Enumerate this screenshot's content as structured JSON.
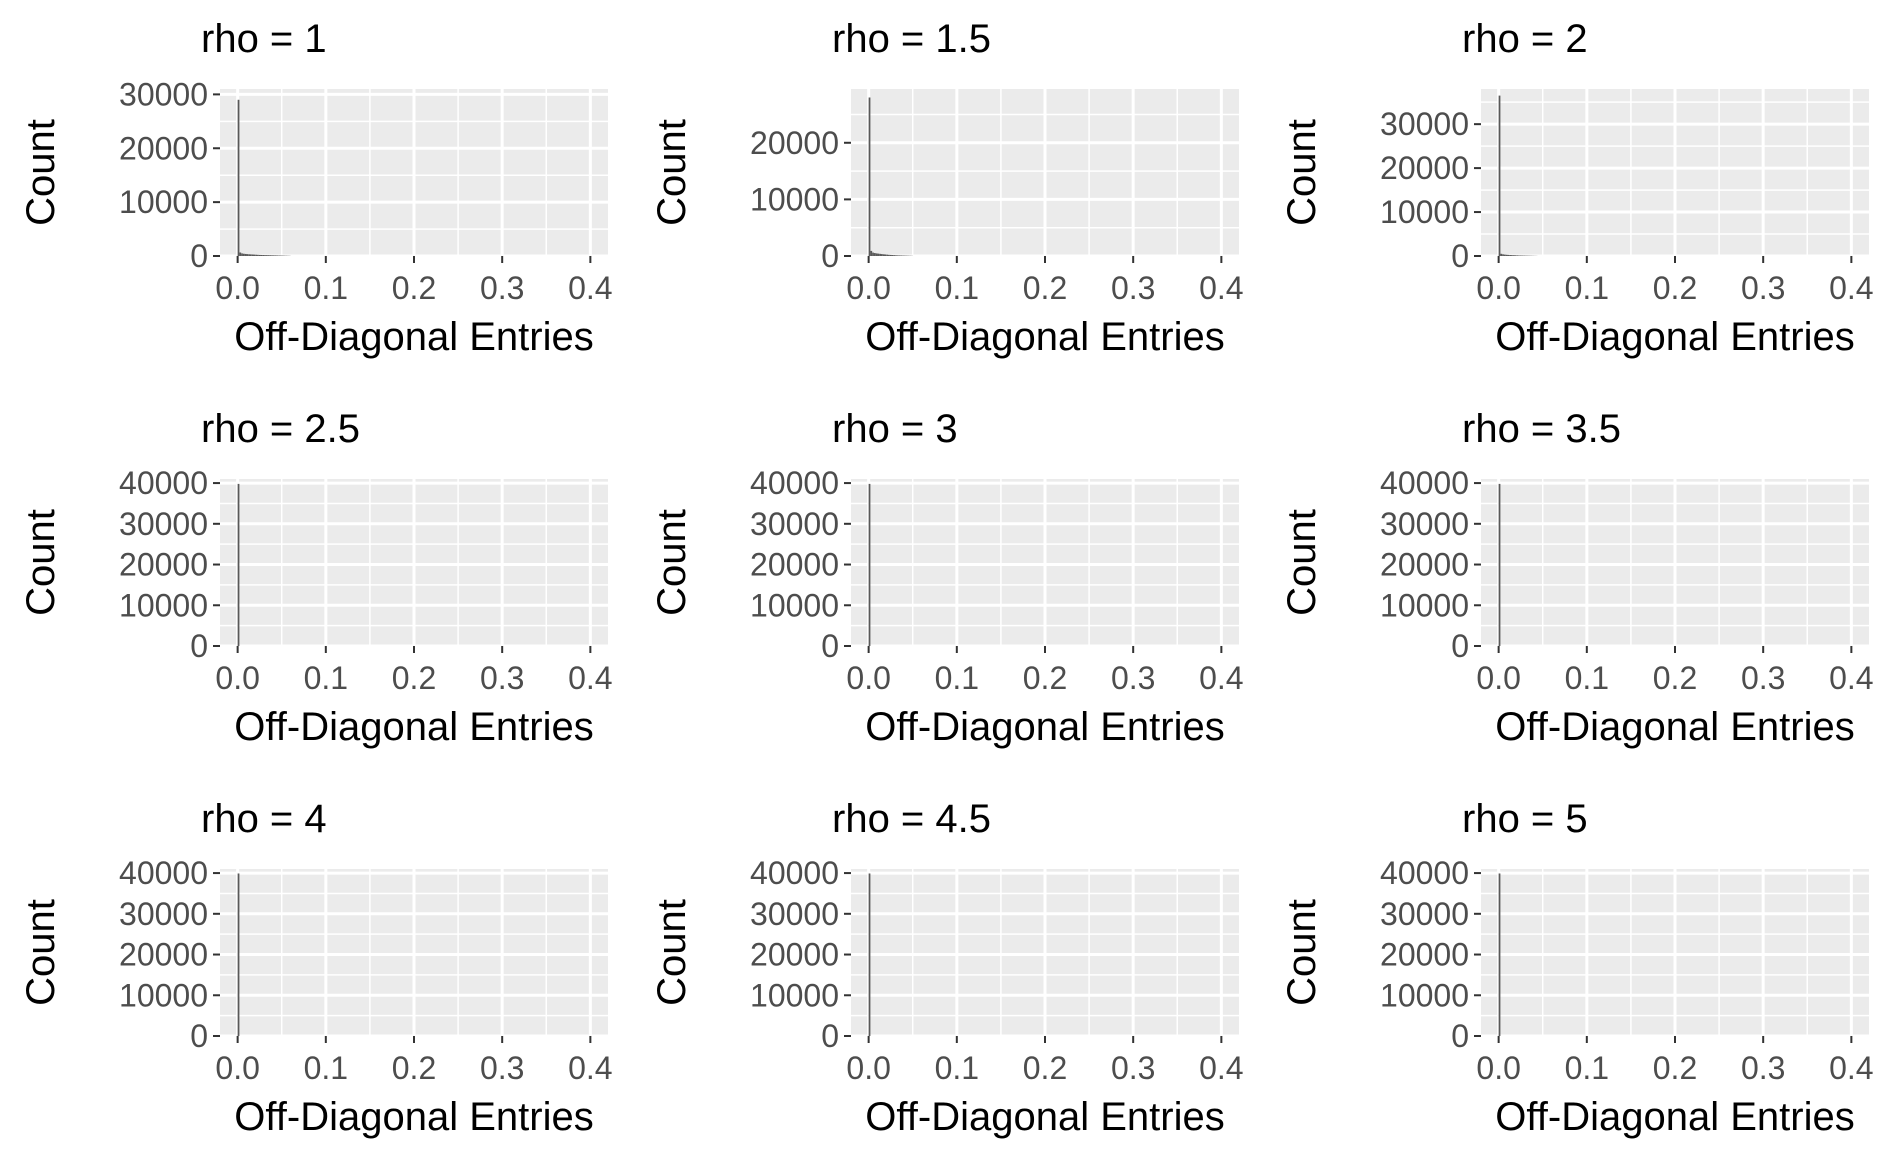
{
  "style": {
    "panel_background": "#ebebeb",
    "grid_color": "#ffffff",
    "bar_fill": "#595959",
    "tick_color": "#333333",
    "tick_label_color": "#4d4d4d",
    "title_color": "#000000"
  },
  "chart_data": [
    {
      "type": "bar",
      "title": "rho =  1",
      "xlabel": "Off-Diagonal Entries",
      "ylabel": "Count",
      "xlim": [
        -0.02,
        0.42
      ],
      "ylim": [
        0,
        31000
      ],
      "x_ticks": [
        0.0,
        0.1,
        0.2,
        0.3,
        0.4
      ],
      "x_tick_labels": [
        "0.0",
        "0.1",
        "0.2",
        "0.3",
        "0.4"
      ],
      "y_ticks": [
        0,
        10000,
        20000,
        30000
      ],
      "y_tick_labels": [
        "0",
        "10000",
        "20000",
        "30000"
      ],
      "bin_width": 0.002,
      "bins_start": [
        0.0,
        0.002,
        0.004,
        0.006,
        0.008,
        0.01,
        0.012,
        0.014,
        0.016,
        0.018,
        0.02,
        0.022,
        0.024,
        0.026,
        0.028,
        0.03,
        0.032,
        0.034,
        0.036,
        0.038,
        0.04,
        0.042,
        0.044,
        0.046,
        0.048,
        0.05,
        0.052,
        0.054,
        0.056,
        0.058
      ],
      "values": [
        29000,
        650,
        480,
        420,
        380,
        350,
        320,
        300,
        280,
        260,
        240,
        220,
        200,
        190,
        180,
        170,
        160,
        150,
        140,
        130,
        120,
        110,
        100,
        90,
        80,
        70,
        60,
        50,
        40,
        30
      ]
    },
    {
      "type": "bar",
      "title": "rho =  1.5",
      "xlabel": "Off-Diagonal Entries",
      "ylabel": "Count",
      "xlim": [
        -0.02,
        0.42
      ],
      "ylim": [
        0,
        29500
      ],
      "x_ticks": [
        0.0,
        0.1,
        0.2,
        0.3,
        0.4
      ],
      "x_tick_labels": [
        "0.0",
        "0.1",
        "0.2",
        "0.3",
        "0.4"
      ],
      "y_ticks": [
        0,
        10000,
        20000
      ],
      "y_tick_labels": [
        "0",
        "10000",
        "20000"
      ],
      "bin_width": 0.002,
      "bins_start": [
        0.0,
        0.002,
        0.004,
        0.006,
        0.008,
        0.01,
        0.012,
        0.014,
        0.016,
        0.018,
        0.02,
        0.022,
        0.024,
        0.026,
        0.028,
        0.03,
        0.032,
        0.034,
        0.036,
        0.038,
        0.04,
        0.042,
        0.044,
        0.046,
        0.048
      ],
      "values": [
        28000,
        900,
        600,
        520,
        460,
        420,
        380,
        340,
        300,
        270,
        240,
        210,
        190,
        170,
        150,
        130,
        110,
        100,
        90,
        80,
        70,
        60,
        50,
        40,
        30
      ]
    },
    {
      "type": "bar",
      "title": "rho =  2",
      "xlabel": "Off-Diagonal Entries",
      "ylabel": "Count",
      "xlim": [
        -0.02,
        0.42
      ],
      "ylim": [
        0,
        38000
      ],
      "x_ticks": [
        0.0,
        0.1,
        0.2,
        0.3,
        0.4
      ],
      "x_tick_labels": [
        "0.0",
        "0.1",
        "0.2",
        "0.3",
        "0.4"
      ],
      "y_ticks": [
        0,
        10000,
        20000,
        30000
      ],
      "y_tick_labels": [
        "0",
        "10000",
        "20000",
        "30000"
      ],
      "bin_width": 0.002,
      "bins_start": [
        0.0,
        0.002,
        0.004,
        0.006,
        0.008,
        0.01,
        0.012,
        0.014,
        0.016,
        0.018,
        0.02,
        0.022,
        0.024,
        0.026,
        0.028,
        0.03,
        0.032,
        0.034,
        0.036,
        0.038,
        0.04,
        0.042
      ],
      "values": [
        36500,
        500,
        380,
        320,
        280,
        250,
        220,
        200,
        180,
        160,
        140,
        120,
        110,
        100,
        90,
        80,
        70,
        60,
        50,
        40,
        30,
        20
      ]
    },
    {
      "type": "bar",
      "title": "rho =  2.5",
      "xlabel": "Off-Diagonal Entries",
      "ylabel": "Count",
      "xlim": [
        -0.02,
        0.42
      ],
      "ylim": [
        0,
        41000
      ],
      "x_ticks": [
        0.0,
        0.1,
        0.2,
        0.3,
        0.4
      ],
      "x_tick_labels": [
        "0.0",
        "0.1",
        "0.2",
        "0.3",
        "0.4"
      ],
      "y_ticks": [
        0,
        10000,
        20000,
        30000,
        40000
      ],
      "y_tick_labels": [
        "0",
        "10000",
        "20000",
        "30000",
        "40000"
      ],
      "bin_width": 0.002,
      "bins_start": [
        0.0
      ],
      "values": [
        39800
      ]
    },
    {
      "type": "bar",
      "title": "rho =  3",
      "xlabel": "Off-Diagonal Entries",
      "ylabel": "Count",
      "xlim": [
        -0.02,
        0.42
      ],
      "ylim": [
        0,
        41000
      ],
      "x_ticks": [
        0.0,
        0.1,
        0.2,
        0.3,
        0.4
      ],
      "x_tick_labels": [
        "0.0",
        "0.1",
        "0.2",
        "0.3",
        "0.4"
      ],
      "y_ticks": [
        0,
        10000,
        20000,
        30000,
        40000
      ],
      "y_tick_labels": [
        "0",
        "10000",
        "20000",
        "30000",
        "40000"
      ],
      "bin_width": 0.002,
      "bins_start": [
        0.0
      ],
      "values": [
        39800
      ]
    },
    {
      "type": "bar",
      "title": "rho =  3.5",
      "xlabel": "Off-Diagonal Entries",
      "ylabel": "Count",
      "xlim": [
        -0.02,
        0.42
      ],
      "ylim": [
        0,
        41000
      ],
      "x_ticks": [
        0.0,
        0.1,
        0.2,
        0.3,
        0.4
      ],
      "x_tick_labels": [
        "0.0",
        "0.1",
        "0.2",
        "0.3",
        "0.4"
      ],
      "y_ticks": [
        0,
        10000,
        20000,
        30000,
        40000
      ],
      "y_tick_labels": [
        "0",
        "10000",
        "20000",
        "30000",
        "40000"
      ],
      "bin_width": 0.002,
      "bins_start": [
        0.0
      ],
      "values": [
        39800
      ]
    },
    {
      "type": "bar",
      "title": "rho =  4",
      "xlabel": "Off-Diagonal Entries",
      "ylabel": "Count",
      "xlim": [
        -0.02,
        0.42
      ],
      "ylim": [
        0,
        41000
      ],
      "x_ticks": [
        0.0,
        0.1,
        0.2,
        0.3,
        0.4
      ],
      "x_tick_labels": [
        "0.0",
        "0.1",
        "0.2",
        "0.3",
        "0.4"
      ],
      "y_ticks": [
        0,
        10000,
        20000,
        30000,
        40000
      ],
      "y_tick_labels": [
        "0",
        "10000",
        "20000",
        "30000",
        "40000"
      ],
      "bin_width": 0.002,
      "bins_start": [
        0.0
      ],
      "values": [
        39900
      ]
    },
    {
      "type": "bar",
      "title": "rho =  4.5",
      "xlabel": "Off-Diagonal Entries",
      "ylabel": "Count",
      "xlim": [
        -0.02,
        0.42
      ],
      "ylim": [
        0,
        41000
      ],
      "x_ticks": [
        0.0,
        0.1,
        0.2,
        0.3,
        0.4
      ],
      "x_tick_labels": [
        "0.0",
        "0.1",
        "0.2",
        "0.3",
        "0.4"
      ],
      "y_ticks": [
        0,
        10000,
        20000,
        30000,
        40000
      ],
      "y_tick_labels": [
        "0",
        "10000",
        "20000",
        "30000",
        "40000"
      ],
      "bin_width": 0.002,
      "bins_start": [
        0.0
      ],
      "values": [
        39900
      ]
    },
    {
      "type": "bar",
      "title": "rho =  5",
      "xlabel": "Off-Diagonal Entries",
      "ylabel": "Count",
      "xlim": [
        -0.02,
        0.42
      ],
      "ylim": [
        0,
        41000
      ],
      "x_ticks": [
        0.0,
        0.1,
        0.2,
        0.3,
        0.4
      ],
      "x_tick_labels": [
        "0.0",
        "0.1",
        "0.2",
        "0.3",
        "0.4"
      ],
      "y_ticks": [
        0,
        10000,
        20000,
        30000,
        40000
      ],
      "y_tick_labels": [
        "0",
        "10000",
        "20000",
        "30000",
        "40000"
      ],
      "bin_width": 0.002,
      "bins_start": [
        0.0
      ],
      "values": [
        39900
      ]
    }
  ]
}
